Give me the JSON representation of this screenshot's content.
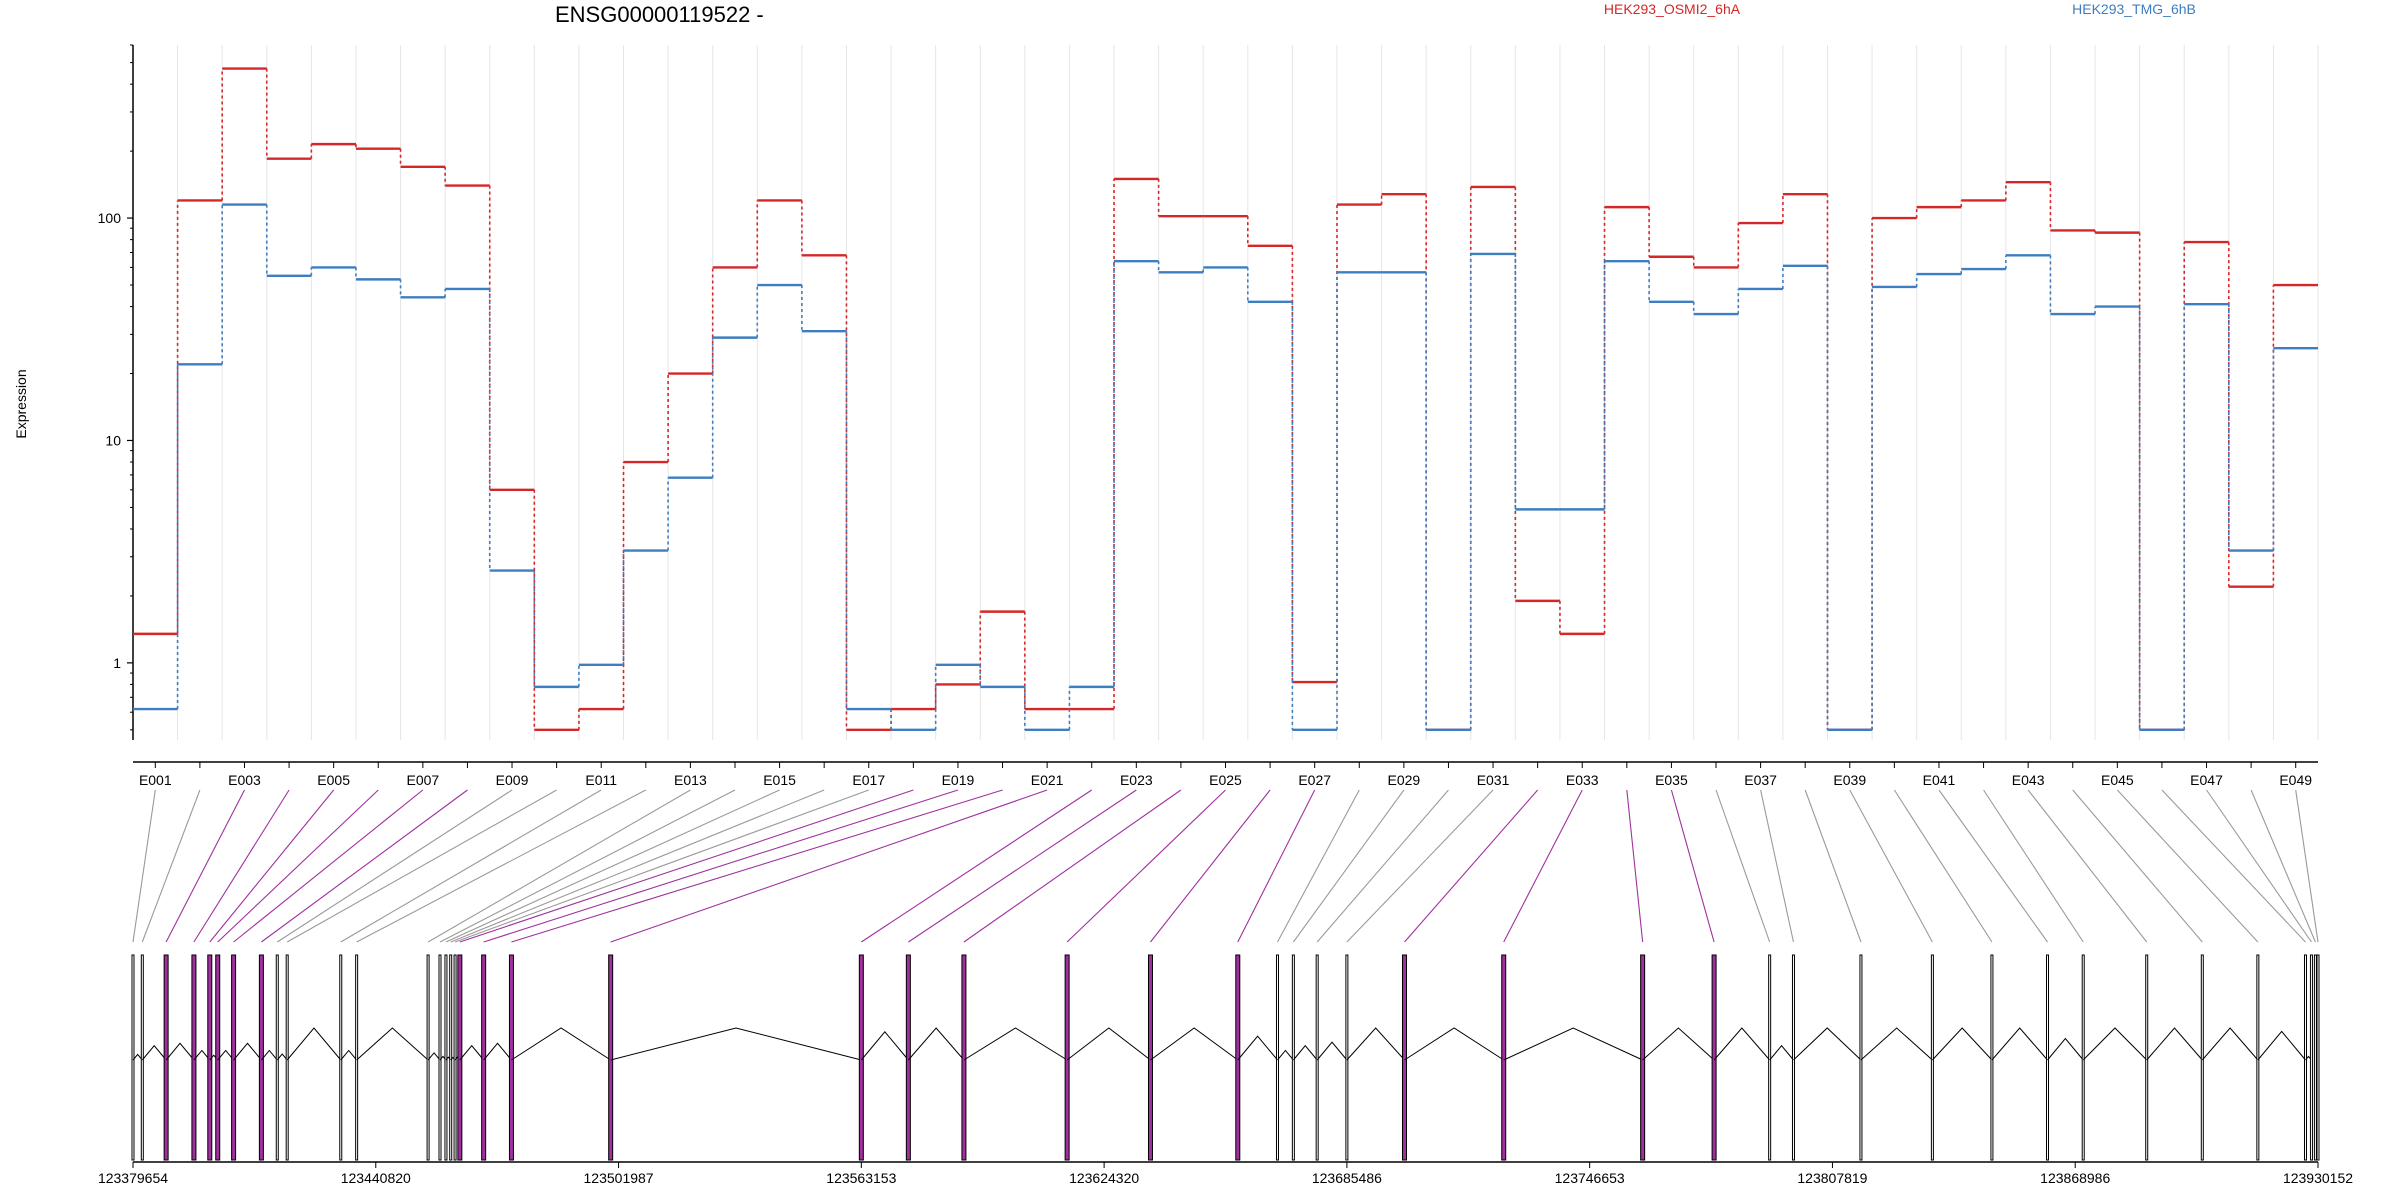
{
  "chart_data": {
    "type": "line",
    "title": "ENSG00000119522 -",
    "ylabel": "Expression",
    "y_scale": "log",
    "y_ticks": [
      1,
      10,
      100
    ],
    "y_tick_labels": [
      "1",
      "10",
      "100"
    ],
    "ylim": [
      0.45,
      600
    ],
    "grid": "vertical",
    "legend_position": "top-right",
    "categories": [
      "E001",
      "E002",
      "E003",
      "E004",
      "E005",
      "E006",
      "E007",
      "E008",
      "E009",
      "E010",
      "E011",
      "E012",
      "E013",
      "E014",
      "E015",
      "E016",
      "E017",
      "E018",
      "E019",
      "E020",
      "E021",
      "E022",
      "E023",
      "E024",
      "E025",
      "E026",
      "E027",
      "E028",
      "E029",
      "E030",
      "E031",
      "E032",
      "E033",
      "E034",
      "E035",
      "E036",
      "E037",
      "E038",
      "E039",
      "E040",
      "E041",
      "E042",
      "E043",
      "E044",
      "E045",
      "E046",
      "E047",
      "E048",
      "E049"
    ],
    "tick_labels": [
      "E001",
      "E003",
      "E005",
      "E007",
      "E009",
      "E011",
      "E013",
      "E015",
      "E017",
      "E019",
      "E021",
      "E023",
      "E025",
      "E027",
      "E029",
      "E031",
      "E033",
      "E035",
      "E037",
      "E039",
      "E041",
      "E043",
      "E045",
      "E047",
      "E049"
    ],
    "series": [
      {
        "name": "HEK293_OSMI2_6hA",
        "color": "#d62728",
        "values": [
          1.35,
          120,
          470,
          185,
          215,
          205,
          170,
          140,
          6,
          0.5,
          0.62,
          8,
          20,
          60,
          120,
          68,
          0.5,
          0.62,
          0.8,
          1.7,
          0.62,
          0.62,
          150,
          102,
          102,
          75,
          0.82,
          115,
          128,
          0.5,
          138,
          1.9,
          1.35,
          112,
          67,
          60,
          95,
          128,
          0.5,
          100,
          112,
          120,
          145,
          88,
          86,
          0.5,
          78,
          2.2,
          50
        ]
      },
      {
        "name": "HEK293_TMG_6hB",
        "color": "#3d7ec0",
        "values": [
          0.62,
          22,
          115,
          55,
          60,
          53,
          44,
          48,
          2.6,
          0.78,
          0.98,
          3.2,
          6.8,
          29,
          50,
          31,
          0.62,
          0.5,
          0.98,
          0.78,
          0.5,
          0.78,
          64,
          57,
          60,
          42,
          0.5,
          57,
          57,
          0.5,
          69,
          4.9,
          4.9,
          64,
          42,
          37,
          48,
          61,
          0.5,
          49,
          56,
          59,
          68,
          37,
          40,
          0.5,
          41,
          3.2,
          26
        ]
      }
    ],
    "genome_ticks": [
      "123379654",
      "123440820",
      "123501987",
      "123563153",
      "123624320",
      "123685486",
      "123746653",
      "123807819",
      "123868986",
      "123930152"
    ],
    "genome_range": [
      123379654,
      123930152
    ],
    "exon_positions": [
      123379654,
      123382000,
      123388000,
      123395000,
      123399000,
      123401000,
      123405000,
      123412000,
      123416000,
      123418500,
      123432000,
      123436000,
      123454000,
      123457000,
      123458500,
      123459700,
      123460800,
      123462000,
      123468000,
      123475000,
      123500000,
      123563153,
      123575000,
      123589000,
      123615000,
      123636000,
      123658000,
      123668000,
      123672000,
      123678000,
      123685486,
      123700000,
      123725000,
      123760000,
      123778000,
      123792000,
      123798000,
      123815000,
      123833000,
      123848000,
      123862000,
      123871000,
      123887000,
      123901000,
      123915000,
      123927000,
      123928500,
      123929500,
      123930152
    ],
    "highlight_color": "#a0309e",
    "highlight_exons": [
      2,
      3,
      4,
      5,
      6,
      7,
      17,
      18,
      19,
      20,
      21,
      22,
      23,
      24,
      25,
      26,
      31,
      32,
      33,
      34
    ]
  }
}
